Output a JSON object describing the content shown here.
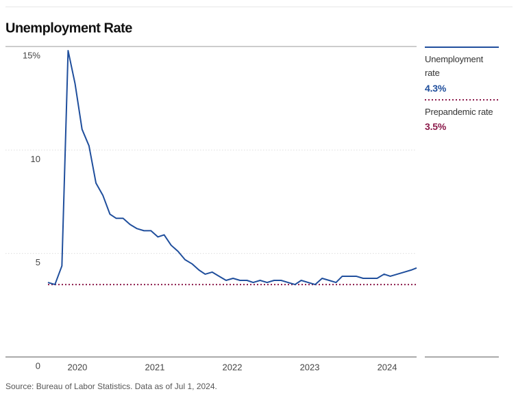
{
  "chart_data": {
    "type": "line",
    "title": "Unemployment Rate",
    "source": "Source: Bureau of Labor Statistics. Data as of Jul 1, 2024.",
    "x": [
      2019.62,
      2019.71,
      2019.8,
      2019.88,
      2019.97,
      2020.06,
      2020.15,
      2020.24,
      2020.33,
      2020.42,
      2020.5,
      2020.59,
      2020.68,
      2020.77,
      2020.86,
      2020.95,
      2021.04,
      2021.12,
      2021.21,
      2021.3,
      2021.39,
      2021.48,
      2021.57,
      2021.65,
      2021.74,
      2021.83,
      2021.92,
      2022.01,
      2022.1,
      2022.19,
      2022.27,
      2022.36,
      2022.45,
      2022.54,
      2022.63,
      2022.72,
      2022.81,
      2022.89,
      2022.98,
      2023.07,
      2023.16,
      2023.25,
      2023.34,
      2023.42,
      2023.51,
      2023.6,
      2023.69,
      2023.78,
      2023.87,
      2023.96,
      2024.04,
      2024.13,
      2024.22,
      2024.31,
      2024.38
    ],
    "series": [
      {
        "name": "Unemployment rate",
        "color": "#1f4e9c",
        "latest_label": "4.3%",
        "values": [
          3.6,
          3.5,
          4.4,
          14.8,
          13.2,
          11.0,
          10.2,
          8.4,
          7.8,
          6.9,
          6.7,
          6.7,
          6.4,
          6.2,
          6.1,
          6.1,
          5.8,
          5.9,
          5.4,
          5.1,
          4.7,
          4.5,
          4.2,
          4.0,
          4.1,
          3.9,
          3.7,
          3.8,
          3.7,
          3.7,
          3.6,
          3.7,
          3.6,
          3.7,
          3.7,
          3.6,
          3.5,
          3.7,
          3.6,
          3.5,
          3.8,
          3.7,
          3.6,
          3.9,
          3.9,
          3.9,
          3.8,
          3.8,
          3.8,
          4.0,
          3.9,
          4.0,
          4.1,
          4.2,
          4.3
        ]
      }
    ],
    "reference_lines": [
      {
        "name": "Prepandemic rate",
        "value": 3.5,
        "value_label": "3.5%",
        "color": "#8b1a4a"
      }
    ],
    "xlim": [
      2019.62,
      2024.38
    ],
    "xticks": [
      2020,
      2021,
      2022,
      2023,
      2024
    ],
    "ylim": [
      0,
      15
    ],
    "yticks": [
      {
        "value": 15,
        "label": "15%"
      },
      10,
      5,
      0
    ],
    "grid": true
  }
}
